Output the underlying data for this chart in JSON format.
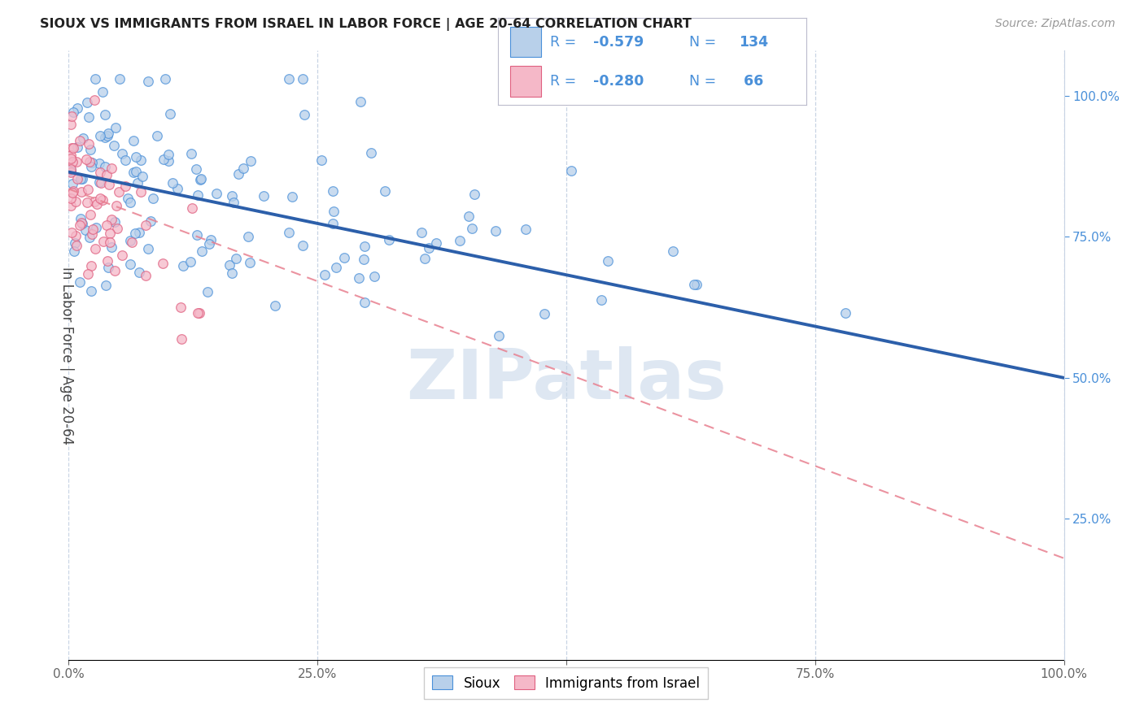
{
  "title": "SIOUX VS IMMIGRANTS FROM ISRAEL IN LABOR FORCE | AGE 20-64 CORRELATION CHART",
  "source": "Source: ZipAtlas.com",
  "ylabel": "In Labor Force | Age 20-64",
  "xlim": [
    0.0,
    1.0
  ],
  "ylim": [
    0.0,
    1.08
  ],
  "xtick_positions": [
    0.0,
    0.25,
    0.5,
    0.75,
    1.0
  ],
  "ytick_positions": [
    0.25,
    0.5,
    0.75,
    1.0
  ],
  "color_blue_fill": "#b8d0ea",
  "color_blue_edge": "#4a90d9",
  "color_pink_fill": "#f5b8c8",
  "color_pink_edge": "#e06080",
  "color_blue_line": "#2c5faa",
  "color_pink_line": "#e88090",
  "color_right_axis": "#4a90d9",
  "color_legend_text": "#4a90d9",
  "watermark_color": "#c8d8ea",
  "background_color": "#ffffff",
  "grid_color": "#c8d4e4",
  "blue_trend_start_y": 0.865,
  "blue_trend_end_y": 0.5,
  "pink_trend_start_y": 0.835,
  "pink_trend_end_y": 0.18
}
